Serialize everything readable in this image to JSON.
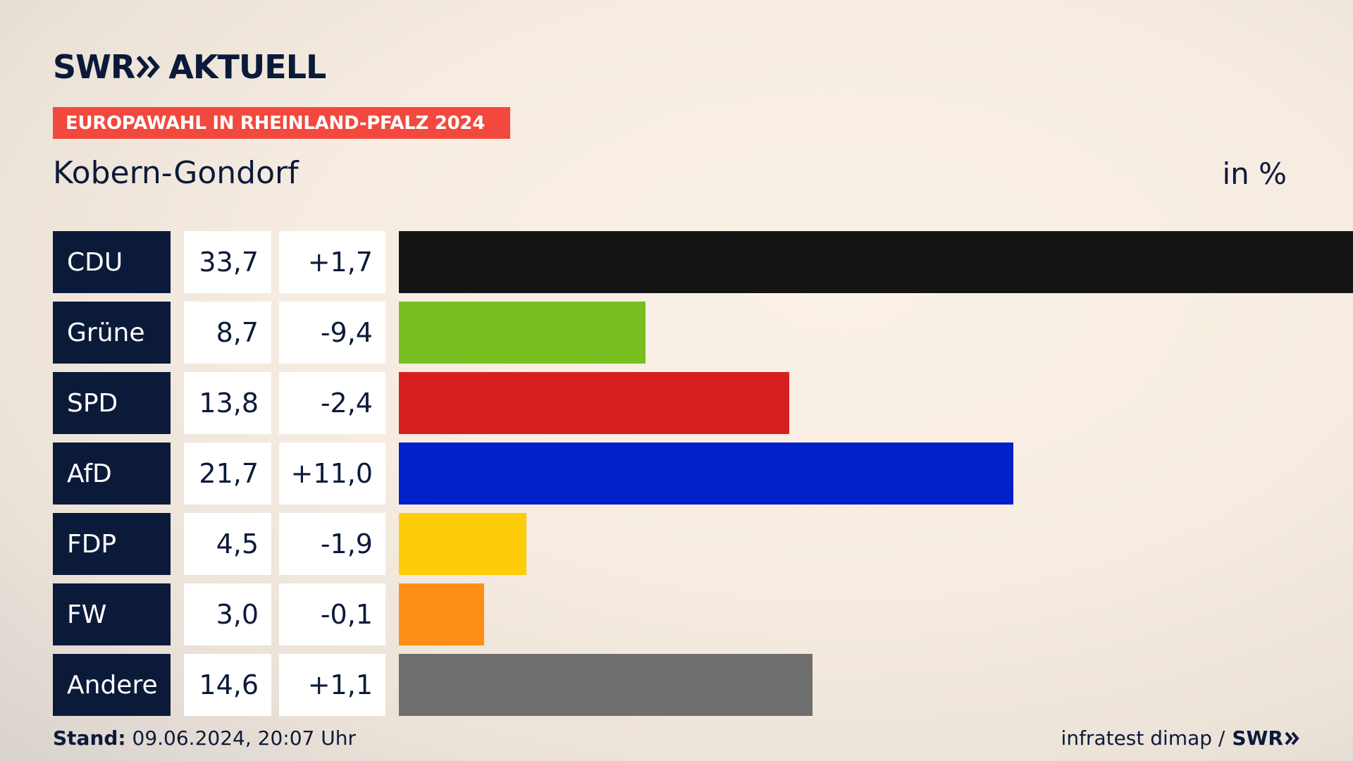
{
  "header": {
    "brand": "SWR",
    "brand_suffix": "AKTUELL",
    "banner": "EUROPAWAHL IN RHEINLAND-PFALZ 2024",
    "region": "Kobern-Gondorf",
    "unit": "in %"
  },
  "chart_data": {
    "type": "bar",
    "orientation": "horizontal",
    "categories": [
      "CDU",
      "Grüne",
      "SPD",
      "AfD",
      "FDP",
      "FW",
      "Andere"
    ],
    "values": [
      "33,7",
      "8,7",
      "13,8",
      "21,7",
      "4,5",
      "3,0",
      "14,6"
    ],
    "values_numeric": [
      33.7,
      8.7,
      13.8,
      21.7,
      4.5,
      3.0,
      14.6
    ],
    "changes": [
      "+1,7",
      "-9,4",
      "-2,4",
      "+11,0",
      "-1,9",
      "-0,1",
      "+1,1"
    ],
    "colors": [
      "#141414",
      "#78be1e",
      "#d71f1f",
      "#0020c8",
      "#ffcc0a",
      "#fe8e15",
      "#6e6e6e"
    ],
    "xlim": [
      0,
      33.7
    ],
    "grid": false
  },
  "footer": {
    "stand_label": "Stand:",
    "stand_value": " 09.06.2024, 20:07 Uhr",
    "source": "infratest dimap /",
    "source_brand": "SWR"
  }
}
